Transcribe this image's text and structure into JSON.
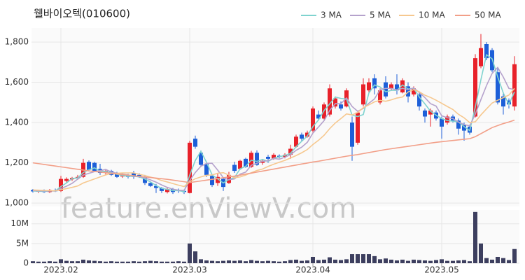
{
  "chart_data": {
    "type": "candlestick",
    "title": "웰바이오텍(010600)",
    "watermark": "feature.enViewV.com",
    "categories": [
      null,
      null,
      null,
      null,
      null,
      "2023.02",
      null,
      null,
      null,
      null,
      null,
      null,
      null,
      null,
      null,
      null,
      null,
      null,
      null,
      null,
      null,
      null,
      null,
      null,
      null,
      null,
      null,
      null,
      "2023.03",
      null,
      null,
      null,
      null,
      null,
      null,
      null,
      null,
      null,
      null,
      null,
      null,
      null,
      null,
      null,
      null,
      null,
      null,
      null,
      null,
      null,
      "2023.04",
      null,
      null,
      null,
      null,
      null,
      null,
      null,
      null,
      null,
      null,
      null,
      null,
      null,
      null,
      null,
      null,
      null,
      null,
      null,
      null,
      null,
      null,
      "2023.05",
      null,
      null,
      null,
      null,
      null,
      null,
      null,
      null,
      null,
      null,
      null,
      null,
      null
    ],
    "open": [
      1065,
      1058,
      1060,
      1055,
      1062,
      1060,
      1110,
      1118,
      1122,
      1130,
      1205,
      1200,
      1170,
      1150,
      1160,
      1150,
      1132,
      1140,
      1150,
      1140,
      1130,
      1100,
      1085,
      1075,
      1055,
      1070,
      1065,
      1060,
      1050,
      1320,
      1250,
      1195,
      1135,
      1100,
      1120,
      1100,
      1190,
      1170,
      1220,
      1180,
      1250,
      1200,
      1230,
      1220,
      1235,
      1230,
      1240,
      1280,
      1340,
      1330,
      1360,
      1440,
      1420,
      1440,
      1480,
      1490,
      1480,
      1400,
      1300,
      1490,
      1560,
      1620,
      1500,
      1600,
      1570,
      1590,
      1550,
      1580,
      1540,
      1540,
      1460,
      1440,
      1450,
      1420,
      1400,
      1430,
      1410,
      1390,
      1380,
      1430,
      1680,
      1790,
      1760,
      1650,
      1530,
      1510,
      1480
    ],
    "high": [
      1070,
      1066,
      1068,
      1070,
      1072,
      1135,
      1128,
      1130,
      1140,
      1220,
      1212,
      1205,
      1195,
      1168,
      1165,
      1155,
      1148,
      1145,
      1160,
      1148,
      1140,
      1108,
      1095,
      1080,
      1078,
      1075,
      1072,
      1068,
      1310,
      1335,
      1262,
      1200,
      1145,
      1150,
      1125,
      1155,
      1205,
      1215,
      1225,
      1260,
      1262,
      1215,
      1240,
      1248,
      1242,
      1248,
      1290,
      1340,
      1350,
      1360,
      1480,
      1460,
      1500,
      1590,
      1530,
      1505,
      1570,
      1430,
      1460,
      1620,
      1620,
      1640,
      1570,
      1630,
      1600,
      1640,
      1620,
      1600,
      1580,
      1550,
      1470,
      1470,
      1460,
      1430,
      1440,
      1440,
      1420,
      1400,
      1390,
      1740,
      1840,
      1800,
      1770,
      1670,
      1545,
      1520,
      1730
    ],
    "low": [
      1052,
      1050,
      1050,
      1050,
      1055,
      1055,
      1100,
      1110,
      1115,
      1125,
      1158,
      1155,
      1140,
      1140,
      1135,
      1125,
      1125,
      1122,
      1120,
      1125,
      1090,
      1080,
      1050,
      1050,
      1048,
      1045,
      1050,
      1045,
      1048,
      1270,
      1185,
      1130,
      1080,
      1085,
      1060,
      1095,
      1150,
      1165,
      1175,
      1175,
      1185,
      1190,
      1200,
      1215,
      1222,
      1222,
      1220,
      1275,
      1310,
      1325,
      1350,
      1410,
      1415,
      1430,
      1470,
      1460,
      1475,
      1210,
      1290,
      1480,
      1550,
      1540,
      1490,
      1520,
      1560,
      1540,
      1545,
      1500,
      1530,
      1460,
      1400,
      1380,
      1410,
      1320,
      1390,
      1400,
      1340,
      1310,
      1340,
      1425,
      1670,
      1710,
      1650,
      1490,
      1440,
      1470,
      1460
    ],
    "close": [
      1058,
      1060,
      1055,
      1065,
      1060,
      1120,
      1120,
      1125,
      1130,
      1200,
      1165,
      1160,
      1150,
      1160,
      1140,
      1130,
      1140,
      1130,
      1130,
      1130,
      1100,
      1085,
      1075,
      1060,
      1070,
      1055,
      1060,
      1055,
      1300,
      1280,
      1190,
      1140,
      1090,
      1130,
      1080,
      1140,
      1160,
      1210,
      1180,
      1250,
      1190,
      1210,
      1220,
      1240,
      1230,
      1240,
      1270,
      1330,
      1320,
      1350,
      1470,
      1420,
      1490,
      1570,
      1520,
      1470,
      1560,
      1280,
      1450,
      1590,
      1600,
      1570,
      1560,
      1530,
      1590,
      1560,
      1610,
      1530,
      1570,
      1480,
      1430,
      1460,
      1420,
      1380,
      1430,
      1410,
      1370,
      1360,
      1350,
      1720,
      1770,
      1720,
      1660,
      1500,
      1480,
      1490,
      1690
    ],
    "up_color": "#e8212a",
    "down_color": "#1d5fd8",
    "series": [
      {
        "name": "3 MA",
        "color": "#7fd3cf",
        "values": [
          1060,
          1059,
          1058,
          1060,
          1060,
          1082,
          1100,
          1122,
          1125,
          1152,
          1165,
          1175,
          1158,
          1157,
          1150,
          1143,
          1137,
          1133,
          1133,
          1130,
          1120,
          1105,
          1087,
          1073,
          1068,
          1062,
          1062,
          1057,
          1138,
          1212,
          1257,
          1203,
          1140,
          1120,
          1100,
          1117,
          1127,
          1170,
          1183,
          1213,
          1207,
          1217,
          1207,
          1223,
          1230,
          1237,
          1247,
          1280,
          1307,
          1333,
          1380,
          1413,
          1460,
          1493,
          1527,
          1520,
          1517,
          1437,
          1430,
          1440,
          1547,
          1587,
          1577,
          1553,
          1560,
          1560,
          1587,
          1567,
          1570,
          1527,
          1493,
          1457,
          1437,
          1420,
          1410,
          1407,
          1403,
          1380,
          1360,
          1477,
          1613,
          1737,
          1717,
          1627,
          1547,
          1490,
          1553
        ]
      },
      {
        "name": "5 MA",
        "color": "#b5a2cc",
        "values": [
          1062,
          1061,
          1060,
          1060,
          1060,
          1072,
          1084,
          1098,
          1119,
          1139,
          1148,
          1156,
          1161,
          1167,
          1155,
          1148,
          1144,
          1140,
          1134,
          1132,
          1126,
          1115,
          1104,
          1090,
          1078,
          1069,
          1064,
          1063,
          1112,
          1152,
          1183,
          1197,
          1198,
          1164,
          1126,
          1116,
          1120,
          1144,
          1154,
          1188,
          1198,
          1208,
          1210,
          1222,
          1218,
          1228,
          1240,
          1262,
          1278,
          1302,
          1348,
          1378,
          1410,
          1460,
          1494,
          1494,
          1522,
          1480,
          1456,
          1470,
          1496,
          1518,
          1564,
          1570,
          1570,
          1562,
          1570,
          1564,
          1572,
          1550,
          1524,
          1494,
          1482,
          1434,
          1424,
          1420,
          1402,
          1390,
          1384,
          1442,
          1514,
          1584,
          1644,
          1674,
          1626,
          1570,
          1564
        ]
      },
      {
        "name": "10 MA",
        "color": "#f6c88f",
        "values": [
          1065,
          1064,
          1063,
          1062,
          1061,
          1066,
          1072,
          1078,
          1085,
          1100,
          1110,
          1120,
          1130,
          1140,
          1147,
          1148,
          1150,
          1150,
          1150,
          1143,
          1137,
          1129,
          1122,
          1112,
          1105,
          1097,
          1089,
          1082,
          1106,
          1121,
          1130,
          1138,
          1140,
          1148,
          1151,
          1139,
          1126,
          1130,
          1139,
          1151,
          1162,
          1169,
          1182,
          1193,
          1203,
          1212,
          1224,
          1236,
          1250,
          1266,
          1291,
          1312,
          1337,
          1370,
          1398,
          1420,
          1443,
          1438,
          1450,
          1474,
          1488,
          1503,
          1510,
          1506,
          1513,
          1522,
          1527,
          1552,
          1564,
          1553,
          1536,
          1525,
          1511,
          1496,
          1480,
          1465,
          1441,
          1424,
          1400,
          1404,
          1438,
          1468,
          1497,
          1511,
          1524,
          1537,
          1570
        ]
      },
      {
        "name": "50 MA",
        "color": "#f29f88",
        "values": [
          1200,
          1196,
          1192,
          1188,
          1184,
          1180,
          1176,
          1172,
          1168,
          1164,
          1160,
          1157,
          1154,
          1151,
          1148,
          1145,
          1142,
          1139,
          1136,
          1133,
          1130,
          1127,
          1124,
          1121,
          1118,
          1114,
          1110,
          1106,
          1102,
          1106,
          1110,
          1114,
          1118,
          1122,
          1126,
          1130,
          1134,
          1139,
          1144,
          1149,
          1154,
          1159,
          1164,
          1169,
          1174,
          1179,
          1184,
          1189,
          1194,
          1199,
          1204,
          1208,
          1213,
          1218,
          1223,
          1228,
          1233,
          1237,
          1241,
          1246,
          1251,
          1256,
          1261,
          1266,
          1270,
          1274,
          1278,
          1282,
          1286,
          1290,
          1294,
          1298,
          1302,
          1305,
          1308,
          1311,
          1314,
          1317,
          1320,
          1330,
          1345,
          1360,
          1375,
          1385,
          1395,
          1403,
          1412
        ]
      }
    ],
    "ylim": [
      983,
      1870
    ],
    "yticks": [
      {
        "value": 1000,
        "label": "1,000"
      },
      {
        "value": 1200,
        "label": "1,200"
      },
      {
        "value": 1400,
        "label": "1,400"
      },
      {
        "value": 1600,
        "label": "1,600"
      },
      {
        "value": 1800,
        "label": "1,800"
      }
    ],
    "grid": true,
    "volume": {
      "color": "#3d3f5f",
      "values": [
        500000,
        400000,
        400000,
        500000,
        400000,
        1000000,
        600000,
        500000,
        500000,
        900000,
        700000,
        600000,
        500000,
        400000,
        500000,
        400000,
        400000,
        400000,
        500000,
        400000,
        500000,
        600000,
        500000,
        400000,
        400000,
        400000,
        500000,
        400000,
        5000000,
        3000000,
        1000000,
        700000,
        600000,
        500000,
        600000,
        700000,
        600000,
        700000,
        500000,
        800000,
        600000,
        500000,
        600000,
        500000,
        400000,
        500000,
        800000,
        900000,
        600000,
        700000,
        1600000,
        800000,
        900000,
        1500000,
        900000,
        800000,
        1000000,
        2300000,
        2300000,
        2300000,
        2300000,
        1800000,
        1000000,
        1200000,
        900000,
        700000,
        900000,
        600000,
        900000,
        800000,
        700000,
        600000,
        800000,
        1000000,
        600000,
        600000,
        700000,
        800000,
        500000,
        13000000,
        5000000,
        1300000,
        900000,
        1600000,
        1300000,
        800000,
        3600000
      ],
      "ylim": [
        0,
        13500000
      ],
      "yticks": [
        {
          "value": 0,
          "label": "0"
        },
        {
          "value": 5000000,
          "label": "5M"
        },
        {
          "value": 10000000,
          "label": "10M"
        }
      ]
    }
  }
}
